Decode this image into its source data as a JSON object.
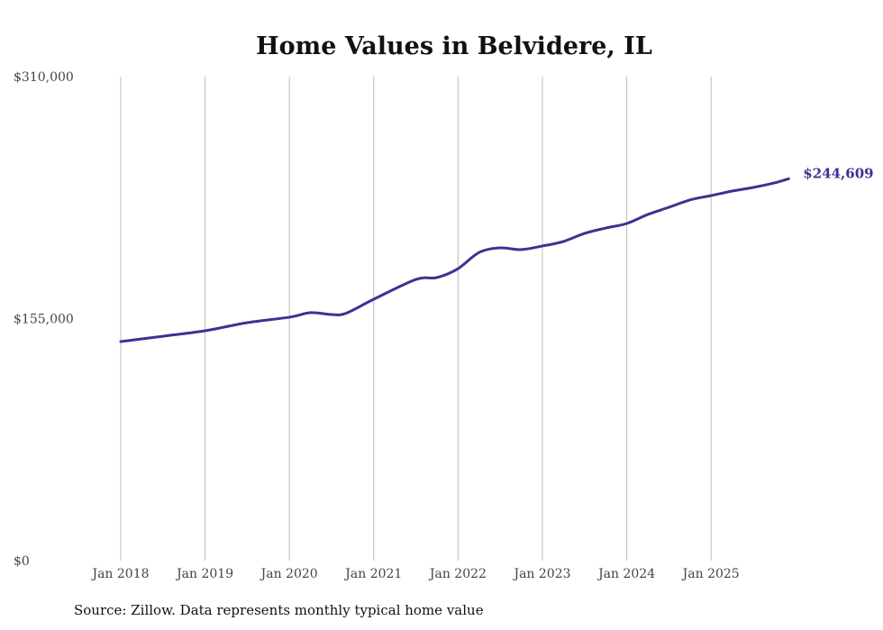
{
  "chart_data": {
    "type": "line",
    "title": "Home Values in Belvidere, IL",
    "xlabel": "",
    "ylabel": "",
    "ylim": [
      0,
      310000
    ],
    "yticks": [
      {
        "value": 0,
        "label": "$0"
      },
      {
        "value": 155000,
        "label": "$155,000"
      },
      {
        "value": 310000,
        "label": "$310,000"
      }
    ],
    "xticks": [
      {
        "value": 2018,
        "label": "Jan 2018"
      },
      {
        "value": 2019,
        "label": "Jan 2019"
      },
      {
        "value": 2020,
        "label": "Jan 2020"
      },
      {
        "value": 2021,
        "label": "Jan 2021"
      },
      {
        "value": 2022,
        "label": "Jan 2022"
      },
      {
        "value": 2023,
        "label": "Jan 2023"
      },
      {
        "value": 2024,
        "label": "Jan 2024"
      },
      {
        "value": 2025,
        "label": "Jan 2025"
      }
    ],
    "xlim": [
      2017.8,
      2026.4
    ],
    "grid": "vertical",
    "series": [
      {
        "name": "Typical home value",
        "color": "#3d3291",
        "x": [
          2018.0,
          2018.5,
          2019.0,
          2019.5,
          2020.0,
          2020.25,
          2020.5,
          2020.67,
          2021.0,
          2021.5,
          2021.75,
          2022.0,
          2022.25,
          2022.5,
          2022.75,
          2023.0,
          2023.25,
          2023.5,
          2023.75,
          2024.0,
          2024.25,
          2024.5,
          2024.75,
          2025.0,
          2025.25,
          2025.5,
          2025.75,
          2025.92
        ],
        "values": [
          140300,
          143700,
          147200,
          152400,
          155900,
          158800,
          157600,
          158400,
          167400,
          180100,
          181300,
          187000,
          197400,
          200300,
          199200,
          201500,
          204400,
          209600,
          213000,
          215900,
          221700,
          226300,
          231000,
          233800,
          236700,
          239000,
          241900,
          244609
        ]
      }
    ],
    "end_label": "$244,609"
  },
  "source": "Source: Zillow. Data represents monthly typical home value"
}
